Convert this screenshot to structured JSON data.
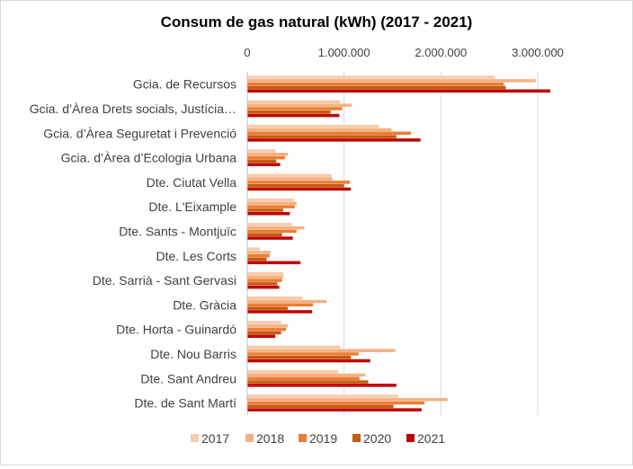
{
  "chart_data": {
    "type": "bar",
    "orientation": "horizontal",
    "title": "Consum de gas natural (kWh) (2017 - 2021)",
    "xlabel": "",
    "ylabel": "",
    "xlim": [
      0,
      3000000
    ],
    "x_ticks": [
      {
        "value": 0,
        "label": "0"
      },
      {
        "value": 1000000,
        "label": "1.000.000"
      },
      {
        "value": 2000000,
        "label": "2.000.000"
      },
      {
        "value": 3000000,
        "label": "3.000.000"
      }
    ],
    "grid": "vertical",
    "legend_position": "bottom",
    "categories": [
      "Gcia. de Recursos",
      "Gcia. d’Àrea Drets socials, Justícia…",
      "Gcia. d’Àrea Seguretat i Prevenció",
      "Gcia. d’Àrea d’Ecologia Urbana",
      "Dte. Ciutat Vella",
      "Dte. L'Eixample",
      "Dte. Sants - Montjuïc",
      "Dte. Les Corts",
      "Dte. Sarrià - Sant Gervasi",
      "Dte. Gràcia",
      "Dte. Horta - Guinardó",
      "Dte. Nou Barris",
      "Dte. Sant Andreu",
      "Dte. de Sant Martí"
    ],
    "series": [
      {
        "name": "2017",
        "color": "#F8CBAD",
        "values": [
          2560000,
          960000,
          1360000,
          290000,
          870000,
          480000,
          460000,
          130000,
          370000,
          570000,
          350000,
          960000,
          940000,
          1560000
        ]
      },
      {
        "name": "2018",
        "color": "#F4B183",
        "values": [
          2980000,
          1080000,
          1490000,
          420000,
          880000,
          510000,
          590000,
          240000,
          370000,
          820000,
          420000,
          1530000,
          1220000,
          2070000
        ]
      },
      {
        "name": "2019",
        "color": "#ED7D31",
        "values": [
          2650000,
          980000,
          1690000,
          390000,
          1060000,
          490000,
          510000,
          230000,
          360000,
          680000,
          400000,
          1150000,
          1160000,
          1830000
        ]
      },
      {
        "name": "2020",
        "color": "#C55A11",
        "values": [
          2670000,
          860000,
          1540000,
          300000,
          1000000,
          370000,
          360000,
          200000,
          310000,
          420000,
          350000,
          1070000,
          1250000,
          1510000
        ]
      },
      {
        "name": "2021",
        "color": "#C00000",
        "values": [
          3130000,
          950000,
          1790000,
          340000,
          1070000,
          440000,
          470000,
          550000,
          330000,
          670000,
          290000,
          1270000,
          1540000,
          1800000
        ]
      }
    ]
  }
}
